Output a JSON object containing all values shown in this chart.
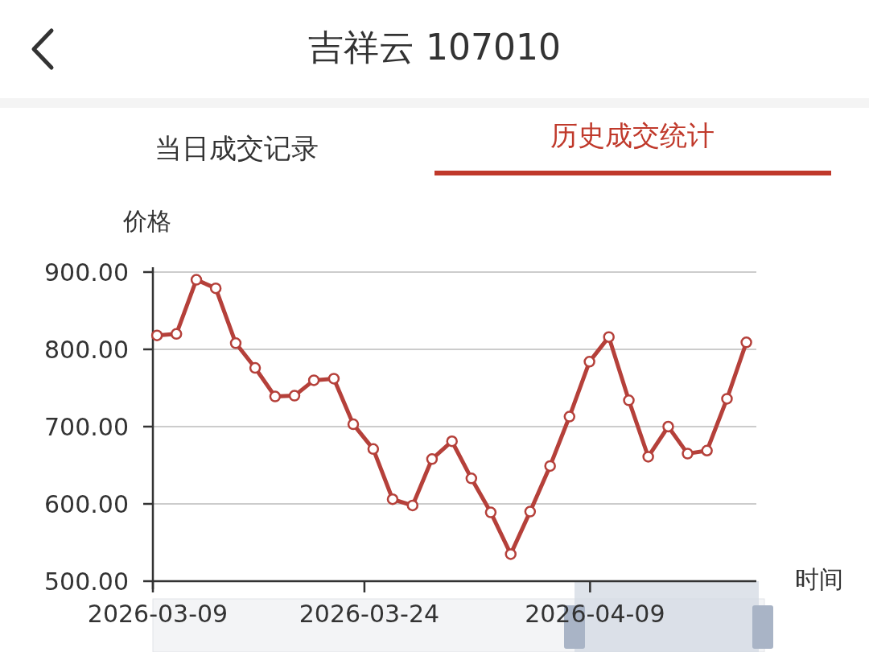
{
  "chart_data": {
    "type": "line",
    "title": "吉祥云 107010",
    "annotations": [
      "当日成交记录",
      "历史成交统计"
    ],
    "xlabel": "时间",
    "ylabel": "价格",
    "x": [
      "2026-03-09T07:00",
      "2026-03-10T16:00",
      "2026-03-12T02:00",
      "2026-03-13T11:00",
      "2026-03-14T21:00",
      "2026-03-16T06:00",
      "2026-03-17T16:00",
      "2026-03-19T01:00",
      "2026-03-20T10:00",
      "2026-03-21T20:00",
      "2026-03-23T05:00",
      "2026-03-24T15:00",
      "2026-03-26T00:00",
      "2026-03-27T10:00",
      "2026-03-28T19:00",
      "2026-03-30T05:00",
      "2026-03-31T14:00",
      "2026-04-01T23:00",
      "2026-04-03T09:00",
      "2026-04-04T18:00",
      "2026-04-06T04:00",
      "2026-04-07T13:00",
      "2026-04-08T23:00",
      "2026-04-10T08:00",
      "2026-04-11T18:00",
      "2026-04-13T03:00",
      "2026-04-14T13:00",
      "2026-04-15T22:00",
      "2026-04-17T07:00",
      "2026-04-18T17:00",
      "2026-04-20T02:00"
    ],
    "series": [
      {
        "color": "#b5403a",
        "values": [
          818,
          820,
          890,
          879,
          808,
          776,
          739,
          740,
          760,
          762,
          703,
          671,
          606,
          598,
          658,
          681,
          633,
          589,
          535,
          590,
          649,
          713,
          784,
          816,
          734,
          661,
          700,
          665,
          669,
          736,
          809
        ]
      }
    ],
    "xlim": [
      "2026-03-09",
      "2026-04-20T19:00"
    ],
    "xticks": [
      "2026-03-09",
      "2026-03-24",
      "2026-04-09"
    ],
    "ylim": [
      500,
      900
    ],
    "yticks": [
      {
        "value": 500,
        "label": "500.00"
      },
      {
        "value": 600,
        "label": "600.00"
      },
      {
        "value": 700,
        "label": "700.00"
      },
      {
        "value": 800,
        "label": "800.00"
      },
      {
        "value": 900,
        "label": "900.00"
      }
    ],
    "grid": "y",
    "marker": "circle",
    "line_style": "solid"
  }
}
